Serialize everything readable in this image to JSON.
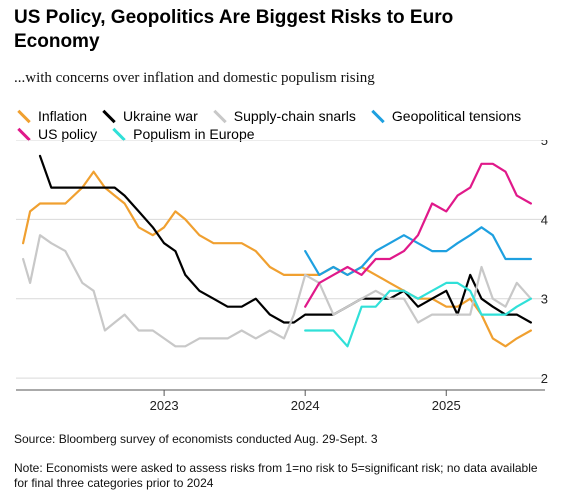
{
  "title": "US Policy, Geopolitics Are Biggest Risks to Euro Economy",
  "subtitle": "...with concerns over inflation and domestic populism rising",
  "source": "Source: Bloomberg survey of economists conducted Aug. 29-Sept. 3",
  "note": "Note: Economists were asked to assess risks from 1=no risk to 5=significant risk; no data available for final three categories prior to 2024",
  "chart_data": {
    "type": "line",
    "ylim": [
      1.85,
      5
    ],
    "yticks": [
      "2",
      "3",
      "4",
      "5"
    ],
    "xlim": [
      2021.95,
      2025.7
    ],
    "xticks": [
      "2023",
      "2024",
      "2025"
    ],
    "grid": true,
    "legend_position": "top",
    "series": [
      {
        "name": "Inflation",
        "color": "#f0a030",
        "x": [
          2022.0,
          2022.05,
          2022.12,
          2022.2,
          2022.3,
          2022.42,
          2022.5,
          2022.58,
          2022.65,
          2022.72,
          2022.82,
          2022.92,
          2023.0,
          2023.08,
          2023.15,
          2023.25,
          2023.35,
          2023.45,
          2023.55,
          2023.65,
          2023.75,
          2023.85,
          2023.92,
          2024.0,
          2024.1,
          2024.2,
          2024.3,
          2024.4,
          2024.5,
          2024.6,
          2024.7,
          2024.8,
          2024.9,
          2025.0,
          2025.08,
          2025.17,
          2025.25,
          2025.33,
          2025.42,
          2025.5,
          2025.6
        ],
        "values": [
          3.7,
          4.1,
          4.2,
          4.2,
          4.2,
          4.4,
          4.6,
          4.4,
          4.3,
          4.2,
          3.9,
          3.8,
          3.9,
          4.1,
          4.0,
          3.8,
          3.7,
          3.7,
          3.7,
          3.6,
          3.4,
          3.3,
          3.3,
          3.3,
          3.3,
          3.4,
          3.3,
          3.4,
          3.3,
          3.2,
          3.1,
          3.0,
          3.0,
          2.9,
          2.9,
          3.0,
          2.8,
          2.5,
          2.4,
          2.5,
          2.6
        ]
      },
      {
        "name": "Ukraine war",
        "color": "#000000",
        "x": [
          2022.12,
          2022.2,
          2022.3,
          2022.42,
          2022.5,
          2022.58,
          2022.65,
          2022.72,
          2022.82,
          2022.92,
          2023.0,
          2023.08,
          2023.15,
          2023.25,
          2023.35,
          2023.45,
          2023.55,
          2023.65,
          2023.75,
          2023.85,
          2023.92,
          2024.0,
          2024.1,
          2024.2,
          2024.3,
          2024.4,
          2024.5,
          2024.6,
          2024.7,
          2024.8,
          2024.9,
          2025.0,
          2025.08,
          2025.17,
          2025.25,
          2025.33,
          2025.42,
          2025.5,
          2025.6
        ],
        "values": [
          4.8,
          4.4,
          4.4,
          4.4,
          4.4,
          4.4,
          4.4,
          4.3,
          4.1,
          3.9,
          3.7,
          3.6,
          3.3,
          3.1,
          3.0,
          2.9,
          2.9,
          3.0,
          2.8,
          2.7,
          2.7,
          2.8,
          2.8,
          2.8,
          2.9,
          3.0,
          3.0,
          3.0,
          3.1,
          2.9,
          3.0,
          3.1,
          2.8,
          3.3,
          3.0,
          2.9,
          2.8,
          2.8,
          2.7
        ]
      },
      {
        "name": "Supply-chain snarls",
        "color": "#c8c8c8",
        "x": [
          2022.0,
          2022.05,
          2022.12,
          2022.2,
          2022.3,
          2022.42,
          2022.5,
          2022.58,
          2022.65,
          2022.72,
          2022.82,
          2022.92,
          2023.0,
          2023.08,
          2023.15,
          2023.25,
          2023.35,
          2023.45,
          2023.55,
          2023.65,
          2023.75,
          2023.85,
          2023.92,
          2024.0,
          2024.1,
          2024.2,
          2024.3,
          2024.4,
          2024.5,
          2024.6,
          2024.7,
          2024.8,
          2024.9,
          2025.0,
          2025.08,
          2025.17,
          2025.25,
          2025.33,
          2025.42,
          2025.5,
          2025.6
        ],
        "values": [
          3.5,
          3.2,
          3.8,
          3.7,
          3.6,
          3.2,
          3.1,
          2.6,
          2.7,
          2.8,
          2.6,
          2.6,
          2.5,
          2.4,
          2.4,
          2.5,
          2.5,
          2.5,
          2.6,
          2.5,
          2.6,
          2.5,
          2.8,
          3.3,
          3.2,
          2.8,
          2.9,
          3.0,
          3.1,
          3.0,
          3.0,
          2.7,
          2.8,
          2.8,
          2.8,
          2.8,
          3.4,
          3.0,
          2.9,
          3.2,
          3.0
        ]
      },
      {
        "name": "Geopolitical tensions",
        "color": "#1ea0e0",
        "x": [
          2024.0,
          2024.1,
          2024.2,
          2024.3,
          2024.4,
          2024.5,
          2024.6,
          2024.7,
          2024.8,
          2024.9,
          2025.0,
          2025.08,
          2025.17,
          2025.25,
          2025.33,
          2025.42,
          2025.5,
          2025.6
        ],
        "values": [
          3.6,
          3.3,
          3.4,
          3.3,
          3.4,
          3.6,
          3.7,
          3.8,
          3.7,
          3.6,
          3.6,
          3.7,
          3.8,
          3.9,
          3.8,
          3.5,
          3.5,
          3.5
        ]
      },
      {
        "name": "US policy",
        "color": "#e0198a",
        "x": [
          2024.0,
          2024.1,
          2024.2,
          2024.3,
          2024.4,
          2024.5,
          2024.6,
          2024.7,
          2024.8,
          2024.9,
          2025.0,
          2025.08,
          2025.17,
          2025.25,
          2025.33,
          2025.42,
          2025.5,
          2025.6
        ],
        "values": [
          2.9,
          3.2,
          3.3,
          3.4,
          3.3,
          3.5,
          3.5,
          3.6,
          3.8,
          4.2,
          4.1,
          4.3,
          4.4,
          4.7,
          4.7,
          4.6,
          4.3,
          4.2
        ]
      },
      {
        "name": "Populism in Europe",
        "color": "#30e0d8",
        "x": [
          2024.0,
          2024.1,
          2024.2,
          2024.3,
          2024.4,
          2024.5,
          2024.6,
          2024.7,
          2024.8,
          2024.9,
          2025.0,
          2025.08,
          2025.17,
          2025.25,
          2025.33,
          2025.42,
          2025.5,
          2025.6
        ],
        "values": [
          2.6,
          2.6,
          2.6,
          2.4,
          2.9,
          2.9,
          3.1,
          3.1,
          3.0,
          3.1,
          3.2,
          3.2,
          3.1,
          2.8,
          2.8,
          2.8,
          2.9,
          3.0
        ]
      }
    ]
  }
}
